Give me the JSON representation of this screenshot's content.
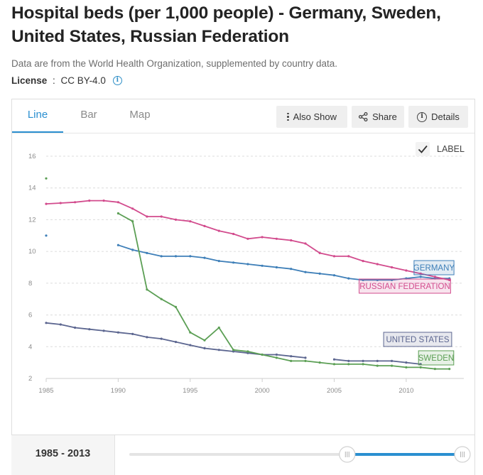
{
  "header": {
    "title": "Hospital beds (per 1,000 people) - Germany, Sweden, United States, Russian Federation",
    "subtitle": "Data are from the World Health Organization, supplemented by country data.",
    "license_label": "License",
    "license_sep": " : ",
    "license_value": "CC BY-4.0"
  },
  "tabs": [
    "Line",
    "Bar",
    "Map"
  ],
  "toolbar": {
    "also_show": "Also Show",
    "share": "Share",
    "details": "Details"
  },
  "label_toggle": "LABEL",
  "range": {
    "start": "1985",
    "sep": " - ",
    "end": "2013",
    "slider_start_fraction": 0.65,
    "slider_end_fraction": 1.0
  },
  "colors": {
    "germany": "#3e7fb8",
    "russia": "#d24b8d",
    "united_states": "#5c6690",
    "sweden": "#5c9f55",
    "accent": "#2a8fd0",
    "grid": "#dcdcdc",
    "axis_text": "#8c8c8c"
  },
  "chart_data": {
    "type": "line",
    "title": "Hospital beds (per 1,000 people)",
    "xlabel": "",
    "ylabel": "",
    "xlim": [
      1985,
      2014
    ],
    "ylim": [
      2,
      16
    ],
    "x_ticks": [
      1985,
      1990,
      1995,
      2000,
      2005,
      2010
    ],
    "y_ticks": [
      2,
      4,
      6,
      8,
      10,
      12,
      14,
      16
    ],
    "grid": true,
    "series": [
      {
        "name": "GERMANY",
        "color_key": "germany",
        "x": [
          1985,
          1990,
          1991,
          1992,
          1993,
          1994,
          1995,
          1996,
          1997,
          1998,
          1999,
          2000,
          2001,
          2002,
          2003,
          2004,
          2005,
          2006,
          2007,
          2008,
          2009,
          2010,
          2011,
          2012,
          2013
        ],
        "y": [
          11.0,
          10.4,
          10.1,
          9.9,
          9.7,
          9.7,
          9.7,
          9.6,
          9.4,
          9.3,
          9.2,
          9.1,
          9.0,
          8.9,
          8.7,
          8.6,
          8.5,
          8.3,
          8.2,
          8.2,
          8.2,
          8.3,
          8.4,
          8.3,
          8.3
        ],
        "label_year": 2013
      },
      {
        "name": "RUSSIAN FEDERATION",
        "color_key": "russia",
        "x": [
          1985,
          1986,
          1987,
          1988,
          1989,
          1990,
          1991,
          1992,
          1993,
          1994,
          1995,
          1996,
          1997,
          1998,
          1999,
          2000,
          2001,
          2002,
          2003,
          2004,
          2005,
          2006,
          2007,
          2008,
          2009,
          2010,
          2011,
          2012,
          2013
        ],
        "y": [
          13.0,
          13.05,
          13.1,
          13.2,
          13.2,
          13.1,
          12.7,
          12.2,
          12.2,
          12.0,
          11.9,
          11.6,
          11.3,
          11.1,
          10.8,
          10.9,
          10.8,
          10.7,
          10.5,
          9.9,
          9.7,
          9.7,
          9.4,
          9.2,
          9.0,
          8.8,
          8.6,
          8.4,
          8.2
        ],
        "label_year": 2013
      },
      {
        "name": "UNITED STATES",
        "color_key": "united_states",
        "x": [
          1985,
          1986,
          1987,
          1988,
          1989,
          1990,
          1991,
          1992,
          1993,
          1994,
          1995,
          1996,
          1997,
          1998,
          1999,
          2000,
          2001,
          2002,
          2003,
          2005,
          2006,
          2007,
          2008,
          2009,
          2010,
          2011
        ],
        "y": [
          5.5,
          5.4,
          5.2,
          5.1,
          5.0,
          4.9,
          4.8,
          4.6,
          4.5,
          4.3,
          4.1,
          3.9,
          3.8,
          3.7,
          3.6,
          3.5,
          3.5,
          3.4,
          3.3,
          3.2,
          3.1,
          3.1,
          3.1,
          3.1,
          3.0,
          2.9
        ],
        "label_year": 2011
      },
      {
        "name": "SWEDEN",
        "color_key": "sweden",
        "x": [
          1985,
          1990,
          1991,
          1992,
          1993,
          1994,
          1995,
          1996,
          1997,
          1998,
          1999,
          2000,
          2001,
          2002,
          2003,
          2004,
          2005,
          2006,
          2007,
          2008,
          2009,
          2010,
          2011,
          2012,
          2013
        ],
        "y": [
          14.6,
          12.4,
          11.9,
          7.6,
          7.0,
          6.5,
          4.9,
          4.4,
          5.2,
          3.8,
          3.7,
          3.5,
          3.3,
          3.1,
          3.1,
          3.0,
          2.9,
          2.9,
          2.9,
          2.8,
          2.8,
          2.7,
          2.7,
          2.6,
          2.6
        ],
        "breaks_after_index": [
          0
        ],
        "label_year": 2013
      }
    ]
  }
}
